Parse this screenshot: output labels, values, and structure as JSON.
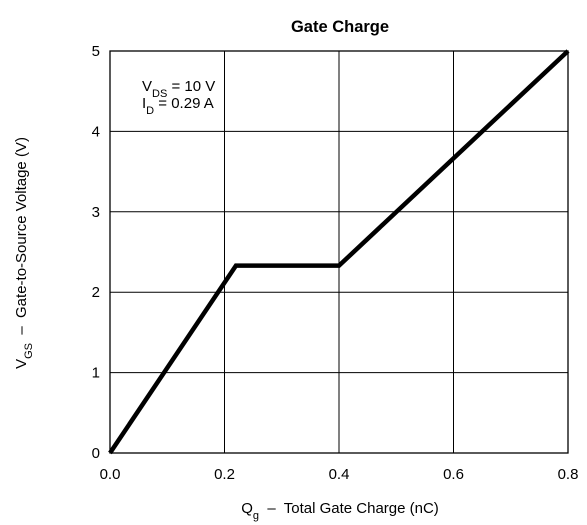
{
  "chart_data": {
    "type": "line",
    "title": "Gate Charge",
    "xlabel": {
      "main": "Q",
      "sub": "g",
      "rest": "  –  Total Gate Charge (nC)"
    },
    "ylabel": {
      "main": "V",
      "sub": "GS",
      "rest": "  –  Gate-to-Source Voltage (V)"
    },
    "xlim": [
      0,
      0.8
    ],
    "ylim": [
      0,
      5
    ],
    "x_ticks": [
      "0.0",
      "0.2",
      "0.4",
      "0.6",
      "0.8"
    ],
    "y_ticks": [
      "0",
      "1",
      "2",
      "3",
      "4",
      "5"
    ],
    "grid": true,
    "annotations": [
      {
        "main": "V",
        "sub": "DS",
        "rest": " = 10 V"
      },
      {
        "main": "I",
        "sub": "D",
        "rest": " = 0.29 A"
      }
    ],
    "series": [
      {
        "x": [
          0.0,
          0.22,
          0.4,
          0.8
        ],
        "y": [
          0.0,
          2.33,
          2.33,
          5.0
        ]
      }
    ]
  }
}
